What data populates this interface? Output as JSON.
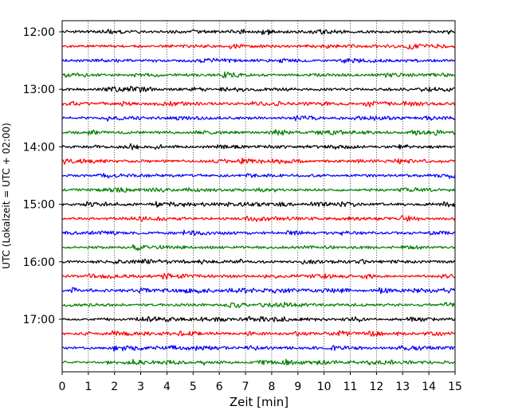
{
  "chart_data": {
    "type": "line",
    "description_kind": "helicorder",
    "xlabel": "Zeit  [min]",
    "ylabel": "UTC (Lokalzeit = UTC + 02:00)",
    "xlim": [
      0,
      15
    ],
    "x_ticks": [
      "0",
      "1",
      "2",
      "3",
      "4",
      "5",
      "6",
      "7",
      "8",
      "9",
      "10",
      "11",
      "12",
      "13",
      "14",
      "15"
    ],
    "y_ticks": [
      "12:00",
      "13:00",
      "14:00",
      "15:00",
      "16:00",
      "17:00"
    ],
    "grid": "vertical-dotted",
    "line_colors": [
      "#000000",
      "#ff0000",
      "#0000ff",
      "#008000"
    ],
    "traces_per_hour": 4,
    "minutes_per_trace": 15,
    "start_time": "12:00",
    "end_time": "18:00",
    "trace_count": 24
  }
}
